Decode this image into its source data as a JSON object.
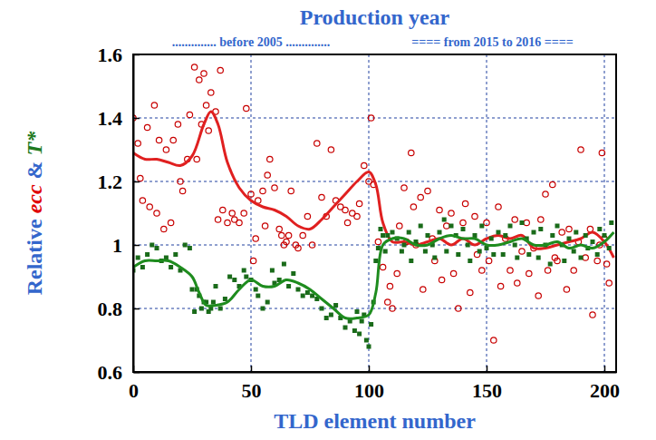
{
  "chart_data": {
    "type": "scatter",
    "title": "Production year",
    "subtitle": [
      ".............. before 2005 ..............",
      "==== from 2015 to 2016 ===="
    ],
    "x_label": "TLD element number",
    "y_label": [
      {
        "text": "Relative "
      },
      {
        "text": "ecc",
        "color": "#e00000"
      },
      {
        "text": " & "
      },
      {
        "text": "T*",
        "color": "#1e7a1e"
      }
    ],
    "xlim": [
      0,
      205
    ],
    "xticks": [
      0,
      50,
      100,
      150,
      200
    ],
    "ylim": [
      0.6,
      1.6
    ],
    "yticks": [
      0.6,
      0.8,
      1,
      1.2,
      1.4,
      1.6
    ],
    "grid": true,
    "series": [
      {
        "type": "scatter",
        "marker": "circle-open",
        "color": "#c80000",
        "x": [
          0,
          2,
          3,
          4,
          6,
          7,
          9,
          10,
          11,
          13,
          14,
          16,
          17,
          19,
          20,
          21,
          23,
          24,
          26,
          27,
          28,
          29,
          30,
          31,
          32,
          33,
          35,
          36,
          37,
          38,
          40,
          42,
          43,
          45,
          47,
          48,
          50,
          51,
          52,
          53,
          55,
          56,
          57,
          58,
          60,
          62,
          63,
          64,
          65,
          66,
          67,
          69,
          70,
          72,
          74,
          76,
          78,
          80,
          82,
          84,
          86,
          88,
          90,
          91,
          93,
          95,
          96,
          98,
          100,
          101,
          102,
          104,
          106,
          108,
          109,
          110,
          112,
          113,
          115,
          116,
          118,
          119,
          120,
          122,
          123,
          125,
          127,
          128,
          130,
          131,
          133,
          135,
          136,
          138,
          140,
          141,
          143,
          145,
          146,
          148,
          150,
          151,
          153,
          155,
          156,
          158,
          160,
          162,
          163,
          165,
          167,
          168,
          170,
          172,
          173,
          175,
          176,
          178,
          179,
          180,
          182,
          184,
          185,
          187,
          189,
          190,
          192,
          194,
          195,
          197,
          198,
          199,
          200,
          201,
          202
        ],
        "values": [
          1.4,
          1.32,
          1.21,
          1.14,
          1.37,
          1.12,
          1.44,
          1.1,
          1.33,
          1.05,
          1.3,
          1.07,
          1.33,
          1.38,
          1.2,
          1.17,
          1.27,
          1.41,
          1.56,
          1.27,
          1.52,
          1.38,
          1.54,
          1.44,
          1.36,
          1.48,
          1.42,
          1.08,
          1.55,
          1.11,
          1.07,
          1.1,
          1.08,
          1.07,
          1.1,
          1.43,
          1.16,
          0.95,
          1.02,
          1.14,
          1.17,
          1.06,
          1.22,
          1.27,
          1.18,
          1.05,
          1.03,
          1.0,
          1.01,
          1.03,
          1.17,
          1.0,
          0.99,
          1.03,
          1.09,
          1.0,
          1.32,
          1.15,
          1.09,
          1.3,
          1.14,
          1.12,
          1.11,
          1.07,
          1.1,
          1.09,
          1.13,
          1.25,
          1.2,
          1.4,
          1.19,
          1.01,
          0.93,
          0.82,
          0.87,
          0.8,
          0.91,
          1.06,
          1.18,
          1.01,
          1.29,
          1.12,
          1.0,
          1.15,
          0.86,
          1.17,
          1.02,
          0.95,
          1.11,
          0.89,
          1.06,
          1.1,
          0.91,
          0.8,
          1.07,
          1.13,
          0.85,
          1.09,
          0.97,
          0.92,
          1.07,
          0.95,
          0.7,
          1.12,
          0.87,
          1.02,
          0.92,
          1.08,
          0.88,
          0.98,
          1.07,
          0.91,
          0.99,
          0.84,
          1.08,
          1.16,
          0.92,
          1.19,
          0.96,
          0.95,
          1.04,
          0.86,
          1.05,
          0.92,
          1.01,
          1.3,
          0.96,
          1.05,
          0.78,
          0.95,
          1.0,
          1.29,
          1.02,
          0.94,
          0.88
        ]
      },
      {
        "type": "line",
        "line_style": "solid",
        "color": "#e02020",
        "x": [
          0,
          5,
          10,
          15,
          20,
          25,
          30,
          33,
          36,
          40,
          45,
          50,
          55,
          60,
          65,
          70,
          75,
          80,
          85,
          90,
          95,
          100,
          103,
          106,
          110,
          115,
          120,
          125,
          130,
          135,
          140,
          145,
          150,
          155,
          160,
          165,
          170,
          175,
          180,
          185,
          190,
          195,
          200,
          204
        ],
        "values": [
          1.29,
          1.27,
          1.27,
          1.26,
          1.25,
          1.28,
          1.38,
          1.42,
          1.38,
          1.26,
          1.18,
          1.14,
          1.12,
          1.11,
          1.09,
          1.06,
          1.05,
          1.08,
          1.12,
          1.16,
          1.2,
          1.23,
          1.19,
          1.07,
          1.01,
          1.01,
          1.0,
          1.01,
          1.02,
          1.0,
          1.02,
          1.0,
          1.02,
          1.03,
          1.02,
          1.03,
          0.99,
          0.99,
          1.0,
          1.01,
          1.02,
          1.04,
          1.01,
          0.96
        ]
      },
      {
        "type": "scatter",
        "marker": "square",
        "color": "#1a6b1a",
        "x": [
          0,
          2,
          4,
          6,
          8,
          10,
          12,
          14,
          16,
          18,
          20,
          22,
          24,
          25,
          26,
          27,
          28,
          29,
          30,
          31,
          32,
          33,
          34,
          35,
          37,
          39,
          41,
          43,
          45,
          47,
          48,
          50,
          52,
          53,
          55,
          57,
          59,
          60,
          62,
          64,
          66,
          68,
          70,
          72,
          74,
          76,
          78,
          80,
          82,
          84,
          86,
          88,
          90,
          92,
          94,
          95,
          96,
          97,
          98,
          99,
          100,
          101,
          102,
          103,
          104,
          105,
          106,
          107,
          108,
          110,
          112,
          114,
          115,
          117,
          118,
          120,
          122,
          124,
          125,
          127,
          128,
          130,
          132,
          133,
          135,
          137,
          138,
          140,
          142,
          143,
          145,
          147,
          148,
          150,
          152,
          153,
          155,
          157,
          158,
          160,
          162,
          163,
          165,
          167,
          168,
          170,
          172,
          173,
          175,
          177,
          178,
          180,
          182,
          183,
          185,
          187,
          188,
          190,
          192,
          193,
          195,
          197,
          198,
          200,
          202,
          203
        ],
        "values": [
          0.92,
          0.96,
          0.93,
          0.97,
          1.0,
          0.99,
          0.95,
          0.96,
          0.93,
          0.97,
          0.92,
          1.0,
          0.99,
          0.86,
          0.79,
          0.86,
          0.84,
          0.8,
          0.82,
          0.82,
          0.79,
          0.8,
          0.82,
          0.87,
          0.8,
          0.83,
          0.9,
          0.89,
          0.87,
          0.92,
          0.9,
          0.89,
          0.86,
          0.84,
          0.8,
          0.82,
          0.92,
          0.88,
          0.89,
          0.94,
          0.87,
          0.91,
          0.86,
          0.84,
          0.85,
          0.84,
          0.83,
          0.8,
          0.77,
          0.78,
          0.81,
          0.77,
          0.74,
          0.76,
          0.73,
          0.79,
          0.72,
          0.76,
          0.78,
          0.7,
          0.68,
          0.75,
          0.82,
          0.95,
          0.99,
          1.05,
          1.03,
          0.98,
          1.03,
          1.04,
          1.02,
          0.98,
          1.0,
          1.04,
          0.95,
          1.01,
          1.06,
          0.98,
          1.03,
          1.0,
          0.96,
          1.04,
          1.08,
          0.98,
          1.06,
          1.03,
          0.97,
          1.05,
          1.0,
          0.95,
          1.03,
          0.98,
          1.06,
          0.99,
          1.02,
          0.97,
          1.04,
          0.97,
          1.03,
          1.06,
          1.0,
          0.96,
          1.07,
          1.02,
          0.97,
          1.04,
          0.96,
          1.05,
          1.0,
          0.94,
          1.03,
          1.06,
          1.0,
          0.95,
          1.02,
          0.98,
          1.04,
          0.96,
          1.03,
          0.99,
          1.01,
          0.97,
          1.05,
          1.03,
          0.99,
          1.07
        ]
      },
      {
        "type": "line",
        "line_style": "solid",
        "color": "#1e8c1e",
        "x": [
          0,
          5,
          10,
          15,
          20,
          25,
          28,
          31,
          35,
          40,
          45,
          50,
          55,
          60,
          65,
          70,
          75,
          80,
          85,
          90,
          95,
          100,
          103,
          106,
          110,
          115,
          120,
          125,
          130,
          135,
          140,
          145,
          150,
          155,
          160,
          165,
          170,
          175,
          180,
          185,
          190,
          195,
          200,
          204
        ],
        "values": [
          0.93,
          0.95,
          0.95,
          0.95,
          0.93,
          0.9,
          0.85,
          0.81,
          0.81,
          0.82,
          0.86,
          0.89,
          0.87,
          0.87,
          0.89,
          0.88,
          0.86,
          0.83,
          0.8,
          0.77,
          0.77,
          0.78,
          0.85,
          1.0,
          1.02,
          1.02,
          1.0,
          1.0,
          1.02,
          1.03,
          1.02,
          1.02,
          1.0,
          1.0,
          1.01,
          1.02,
          1.0,
          1.0,
          1.01,
          0.99,
          1.0,
          0.99,
          1.01,
          1.04
        ]
      }
    ]
  }
}
